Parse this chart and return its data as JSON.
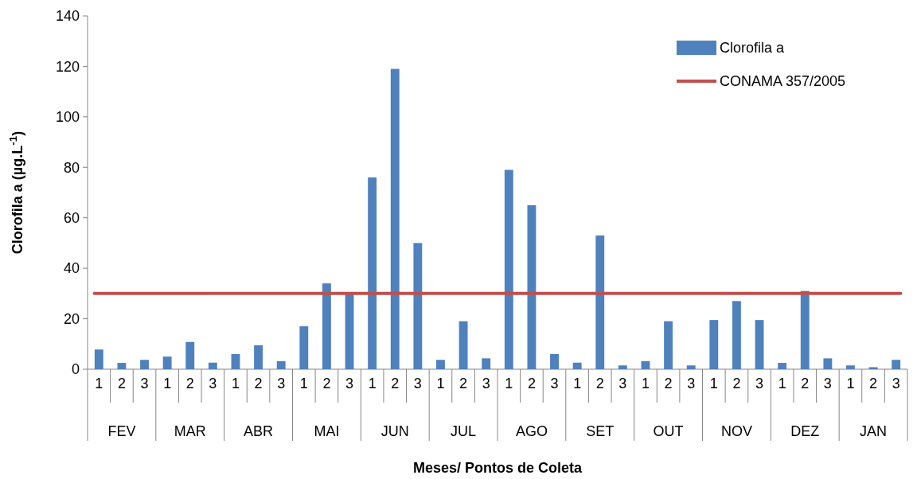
{
  "chart_data": {
    "type": "bar",
    "xlabel": "Meses/ Pontos de Coleta",
    "ylabel": "Clorofila a (µg.L$^{-1}$)",
    "categories": [
      "1",
      "2",
      "3",
      "1",
      "2",
      "3",
      "1",
      "2",
      "3",
      "1",
      "2",
      "3",
      "1",
      "2",
      "3",
      "1",
      "2",
      "3",
      "1",
      "2",
      "3",
      "1",
      "2",
      "3",
      "1",
      "2",
      "3",
      "1",
      "2",
      "3",
      "1",
      "2",
      "3",
      "1",
      "2",
      "3"
    ],
    "series": [
      {
        "name": "Clorofila a",
        "color": "#4f81bd",
        "values": [
          7.8,
          2.5,
          3.7,
          5,
          10.8,
          2.6,
          6,
          9.5,
          3.2,
          17,
          34,
          30,
          76,
          119,
          50,
          3.7,
          19,
          4.3,
          79,
          65,
          6,
          2.6,
          53,
          1.5,
          3.2,
          19,
          1.5,
          19.5,
          27,
          19.5,
          2.5,
          31,
          4.3,
          1.5,
          0.8,
          3.7
        ]
      }
    ],
    "ref_lines": [
      {
        "axis": "y",
        "value": 30,
        "label": "CONAMA 357/2005",
        "color": "#c0504d"
      }
    ],
    "annotations": [
      "FEV",
      "MAR",
      "ABR",
      "MAI",
      "JUN",
      "JUL",
      "AGO",
      "SET",
      "OUT",
      "NOV",
      "DEZ",
      "JAN"
    ],
    "ylim": [
      0,
      140
    ],
    "yticks": [
      0,
      20,
      40,
      60,
      80,
      100,
      120,
      140
    ],
    "legend": "top right"
  }
}
